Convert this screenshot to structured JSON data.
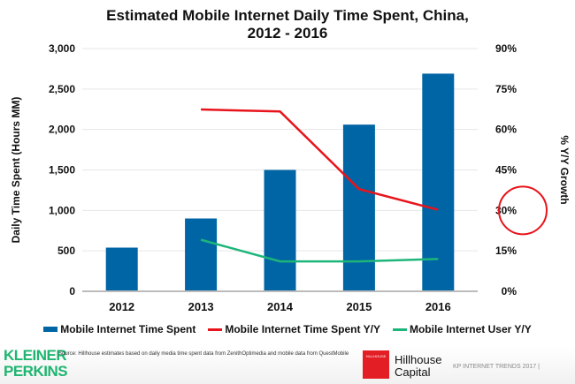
{
  "chart_data": {
    "type": "bar",
    "title": "Estimated Mobile Internet Daily Time Spent, China,",
    "title_line2": "2012 - 2016",
    "categories": [
      "2012",
      "2013",
      "2014",
      "2015",
      "2016"
    ],
    "ylabel": "Daily Time Spent (Hours MM)",
    "y2label": "% Y/Y Growth",
    "ylim": [
      0,
      3000
    ],
    "y2lim": [
      0,
      90
    ],
    "yticks": [
      "0",
      "500",
      "1,000",
      "1,500",
      "2,000",
      "2,500",
      "3,000"
    ],
    "y2ticks": [
      "0%",
      "15%",
      "30%",
      "45%",
      "60%",
      "75%",
      "90%"
    ],
    "grid": true,
    "legend_position": "bottom",
    "series": [
      {
        "name": "Mobile Internet Time Spent",
        "type": "bar",
        "axis": "left",
        "color": "#0065a4",
        "values": [
          540,
          900,
          1500,
          2060,
          2690
        ]
      },
      {
        "name": "Mobile Internet Time Spent Y/Y",
        "type": "line",
        "axis": "right",
        "color": "#e8141b",
        "values": [
          null,
          67.4,
          66.7,
          37.9,
          30.2
        ]
      },
      {
        "name": "Mobile Internet User Y/Y",
        "type": "line",
        "axis": "right",
        "color": "#1db57a",
        "values": [
          null,
          19.1,
          11.1,
          11.1,
          12.0
        ]
      }
    ],
    "annotation": {
      "type": "circle",
      "target": "30%",
      "color": "#e8141b"
    }
  },
  "footer": {
    "logo_left": "KLEINER PERKINS",
    "logo_left_line1": "KLEINER",
    "logo_left_line2": "PERKINS",
    "source": "Source: Hillhouse estimates based on daily media time spent data from ZenithOptimedia and mobile data from QuestMobile",
    "logo_right_box": "HILLHOUSE",
    "logo_right_line1": "Hillhouse",
    "logo_right_line2": "Capital",
    "trends": "KP INTERNET TRENDS 2017  |"
  }
}
